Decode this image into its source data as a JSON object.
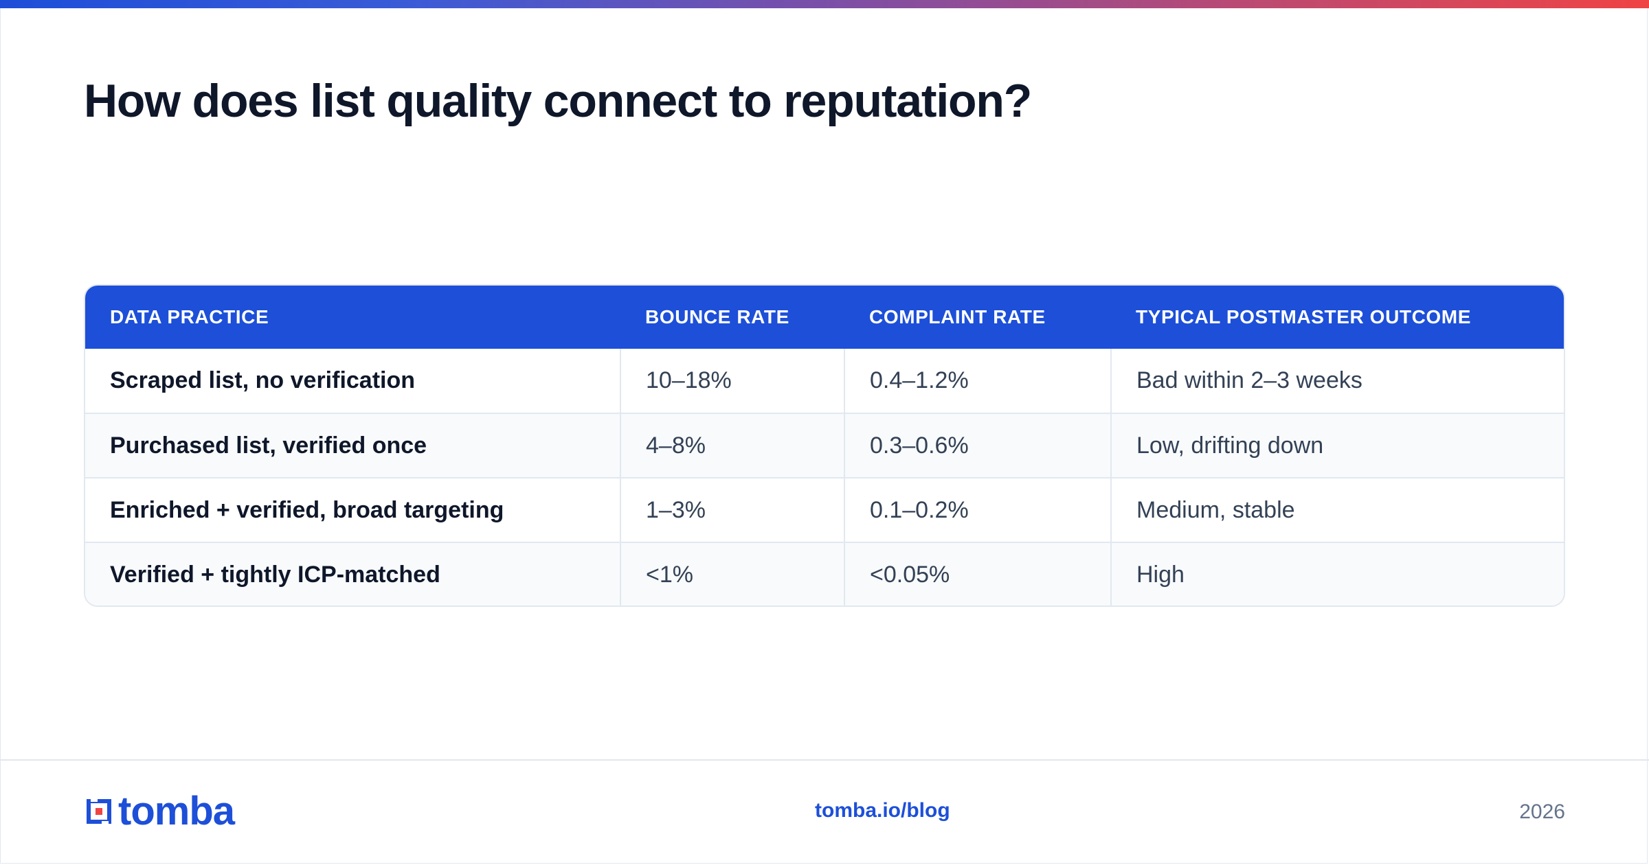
{
  "title": "How does list quality connect to reputation?",
  "colors": {
    "accent": "#1d4fd8",
    "header_bg": "#1d4fd8",
    "gradient_start": "#1d4ed8",
    "gradient_end": "#ef4444",
    "text_dark": "#0f172a",
    "text_muted": "#64748b"
  },
  "table": {
    "headers": [
      "DATA PRACTICE",
      "BOUNCE RATE",
      "COMPLAINT RATE",
      "TYPICAL POSTMASTER OUTCOME"
    ],
    "rows": [
      {
        "practice": "Scraped list, no verification",
        "bounce": "10–18%",
        "complaint": "0.4–1.2%",
        "outcome": "Bad within 2–3 weeks"
      },
      {
        "practice": "Purchased list, verified once",
        "bounce": "4–8%",
        "complaint": "0.3–0.6%",
        "outcome": "Low, drifting down"
      },
      {
        "practice": "Enriched + verified, broad targeting",
        "bounce": "1–3%",
        "complaint": "0.1–0.2%",
        "outcome": "Medium, stable"
      },
      {
        "practice": "Verified + tightly ICP-matched",
        "bounce": "<1%",
        "complaint": "<0.05%",
        "outcome": "High"
      }
    ]
  },
  "footer": {
    "logo_text": "tomba",
    "logo_icon": "tomba-logo-icon",
    "link": "tomba.io/blog",
    "year": "2026"
  }
}
